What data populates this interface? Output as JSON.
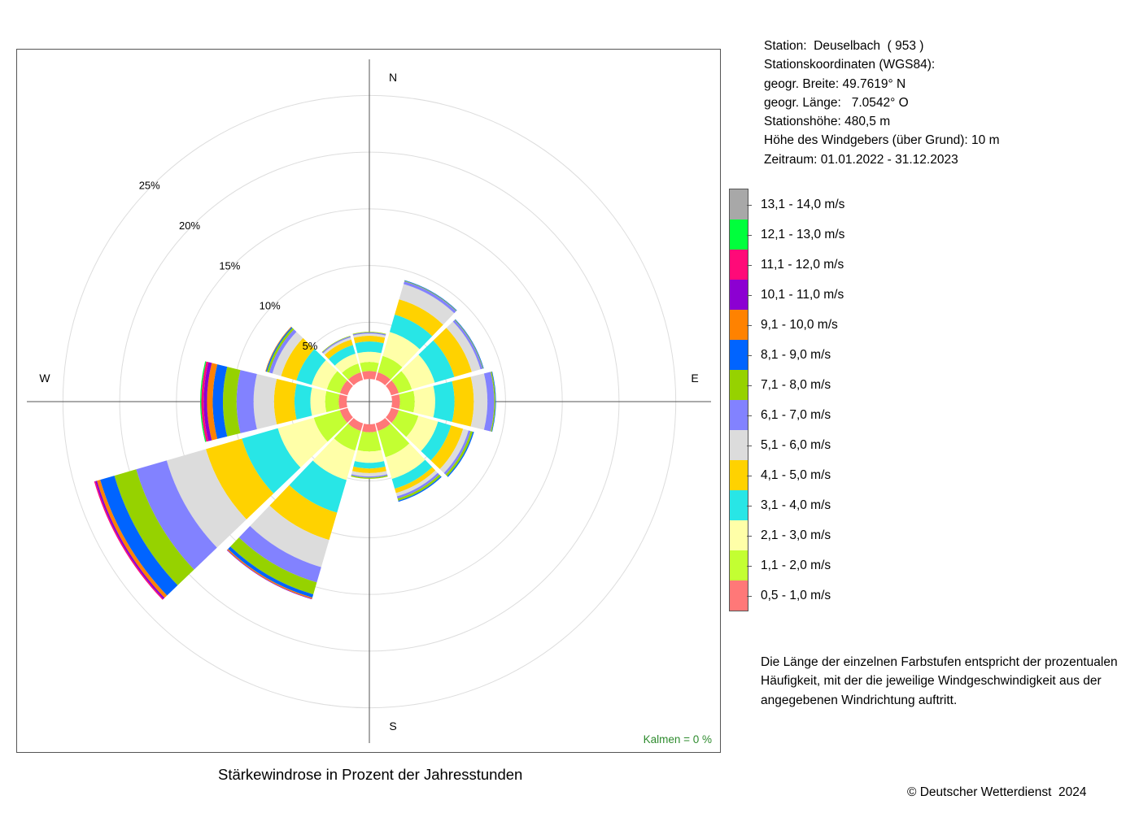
{
  "station": {
    "lines": [
      "Station:  Deuselbach  ( 953 )",
      "Stationskoordinaten (WGS84):",
      "geogr. Breite: 49.7619° N",
      "geogr. Länge:   7.0542° O",
      "Stationshöhe: 480,5 m",
      "Höhe des Windgebers (über Grund): 10 m",
      "Zeitraum: 01.01.2022 - 31.12.2023"
    ]
  },
  "legend": {
    "items": [
      {
        "label": "13,1 - 14,0 m/s",
        "color": "#a8a8a8"
      },
      {
        "label": "12,1 - 13,0 m/s",
        "color": "#00ff3c"
      },
      {
        "label": "11,1 - 12,0 m/s",
        "color": "#ff0a78"
      },
      {
        "label": "10,1 - 11,0 m/s",
        "color": "#8c00d2"
      },
      {
        "label": "9,1 - 10,0 m/s",
        "color": "#ff8200"
      },
      {
        "label": "8,1 - 9,0 m/s",
        "color": "#0064ff"
      },
      {
        "label": "7,1 - 8,0 m/s",
        "color": "#96d200"
      },
      {
        "label": "6,1 - 7,0 m/s",
        "color": "#8282ff"
      },
      {
        "label": "5,1 - 6,0 m/s",
        "color": "#dcdcdc"
      },
      {
        "label": "4,1 - 5,0 m/s",
        "color": "#ffd200"
      },
      {
        "label": "3,1 - 4,0 m/s",
        "color": "#28e6e6"
      },
      {
        "label": "2,1 - 3,0 m/s",
        "color": "#ffffa8"
      },
      {
        "label": "1,1 - 2,0 m/s",
        "color": "#c3ff32"
      },
      {
        "label": "0,5 - 1,0 m/s",
        "color": "#ff7878"
      }
    ]
  },
  "note": "Die Länge der einzelnen Farbstufen entspricht der prozentualen Häufigkeit, mit der die jeweilige Windgeschwindigkeit aus der angegebenen Windrichtung auftritt.",
  "chart_title": "Stärkewindrose in Prozent der Jahresstunden",
  "copyright": "© Deutscher Wetterdienst  2024",
  "chart_data": {
    "type": "wind_rose",
    "title": "Stärkewindrose in Prozent der Jahresstunden",
    "unit": "%",
    "calm_label": "Kalmen  =  0 %",
    "compass_labels": {
      "N": "N",
      "E": "E",
      "S": "S",
      "W": "W"
    },
    "rings": [
      5,
      10,
      15,
      20,
      25
    ],
    "ring_labels": [
      "5%",
      "10%",
      "15%",
      "20%",
      "25%"
    ],
    "center_offset": 2,
    "speed_classes": [
      "0,5 - 1,0 m/s",
      "1,1 - 2,0 m/s",
      "2,1 - 3,0 m/s",
      "3,1 - 4,0 m/s",
      "4,1 - 5,0 m/s",
      "5,1 - 6,0 m/s",
      "6,1 - 7,0 m/s",
      "7,1 - 8,0 m/s",
      "8,1 - 9,0 m/s",
      "9,1 - 10,0 m/s",
      "10,1 - 11,0 m/s",
      "11,1 - 12,0 m/s",
      "12,1 - 13,0 m/s",
      "13,1 - 14,0 m/s"
    ],
    "directions": [
      {
        "dir": "0°",
        "segments": [
          0.7,
          0.8,
          0.9,
          0.9,
          0.5,
          0.2,
          0.1,
          0.05
        ]
      },
      {
        "dir": "30°",
        "segments": [
          0.7,
          1.5,
          2.2,
          1.6,
          1.4,
          1.4,
          0.25,
          0.05,
          0.05
        ]
      },
      {
        "dir": "60°",
        "segments": [
          0.7,
          1.2,
          2.1,
          1.8,
          1.6,
          0.8,
          0.2,
          0.05,
          0.05
        ]
      },
      {
        "dir": "90°",
        "segments": [
          0.7,
          1.3,
          1.8,
          1.7,
          1.7,
          1.2,
          0.6,
          0.1,
          0.05
        ]
      },
      {
        "dir": "120°",
        "segments": [
          0.7,
          1.8,
          1.8,
          1.2,
          1.1,
          0.5,
          0.2,
          0.2,
          0.1
        ]
      },
      {
        "dir": "150°",
        "segments": [
          0.7,
          2.4,
          2.0,
          0.9,
          0.4,
          0.3,
          0.2,
          0.2,
          0.1
        ]
      },
      {
        "dir": "180°",
        "segments": [
          0.7,
          1.7,
          1.0,
          0.5,
          0.4,
          0.3,
          0.1,
          0.1
        ]
      },
      {
        "dir": "210°",
        "segments": [
          0.7,
          1.8,
          2.7,
          3.0,
          2.5,
          2.5,
          1.4,
          1.1,
          0.3,
          0.1,
          0.05
        ]
      },
      {
        "dir": "240°",
        "segments": [
          0.7,
          2.4,
          3.3,
          3.3,
          3.3,
          3.6,
          2.8,
          2.0,
          1.3,
          0.3,
          0.15,
          0.1
        ]
      },
      {
        "dir": "270°",
        "segments": [
          0.7,
          1.2,
          1.3,
          1.4,
          1.8,
          1.8,
          1.5,
          1.2,
          0.9,
          0.5,
          0.3,
          0.2,
          0.1
        ]
      },
      {
        "dir": "300°",
        "segments": [
          0.7,
          1.2,
          1.4,
          1.4,
          1.4,
          0.8,
          0.3,
          0.2,
          0.1,
          0.05
        ]
      },
      {
        "dir": "330°",
        "segments": [
          0.7,
          0.8,
          0.9,
          0.8,
          0.5,
          0.2,
          0.1,
          0.05
        ]
      }
    ]
  }
}
